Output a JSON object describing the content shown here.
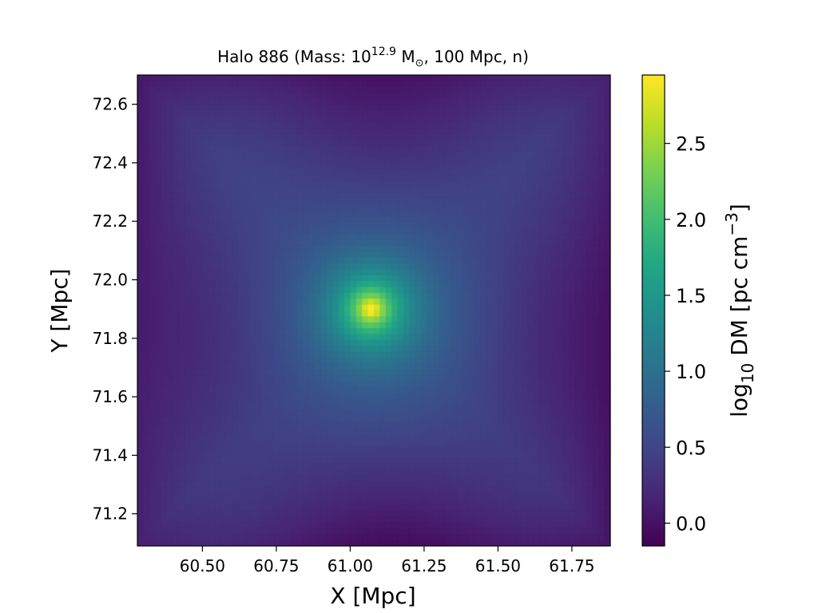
{
  "chart_data": {
    "type": "heatmap",
    "title": {
      "prefix": "Halo 886 (Mass: 10",
      "exponent": "12.9",
      "unit_base": "M",
      "unit_sub": "⊙",
      "suffix": ", 100 Mpc, n)"
    },
    "xlabel": "X [Mpc]",
    "ylabel": "Y [Mpc]",
    "xlim": [
      60.28,
      61.88
    ],
    "ylim": [
      71.09,
      72.7
    ],
    "xticks": [
      60.5,
      60.75,
      61.0,
      61.25,
      61.5,
      61.75
    ],
    "xtick_labels": [
      "60.50",
      "60.75",
      "61.00",
      "61.25",
      "61.50",
      "61.75"
    ],
    "yticks": [
      71.2,
      71.4,
      71.6,
      71.8,
      72.0,
      72.2,
      72.4,
      72.6
    ],
    "ytick_labels": [
      "71.2",
      "71.4",
      "71.6",
      "71.8",
      "72.0",
      "72.2",
      "72.4",
      "72.6"
    ],
    "colormap": "viridis",
    "colorbar": {
      "label": {
        "log_text": "log",
        "log_sub": "10",
        "main": " DM [pc cm",
        "exp": "−3",
        "close": "]"
      },
      "range": [
        -0.15,
        2.95
      ],
      "ticks": [
        0.0,
        0.5,
        1.0,
        1.5,
        2.0,
        2.5
      ],
      "tick_labels": [
        "0.0",
        "0.5",
        "1.0",
        "1.5",
        "2.0",
        "2.5"
      ]
    },
    "peak": {
      "x": 61.07,
      "y": 71.9,
      "value": 2.95
    },
    "background_level": 0.45,
    "corner_levels": {
      "top-left": -0.05,
      "top-right": 0.0,
      "bottom-left": 0.05,
      "bottom-right": -0.15
    },
    "grid": false
  }
}
